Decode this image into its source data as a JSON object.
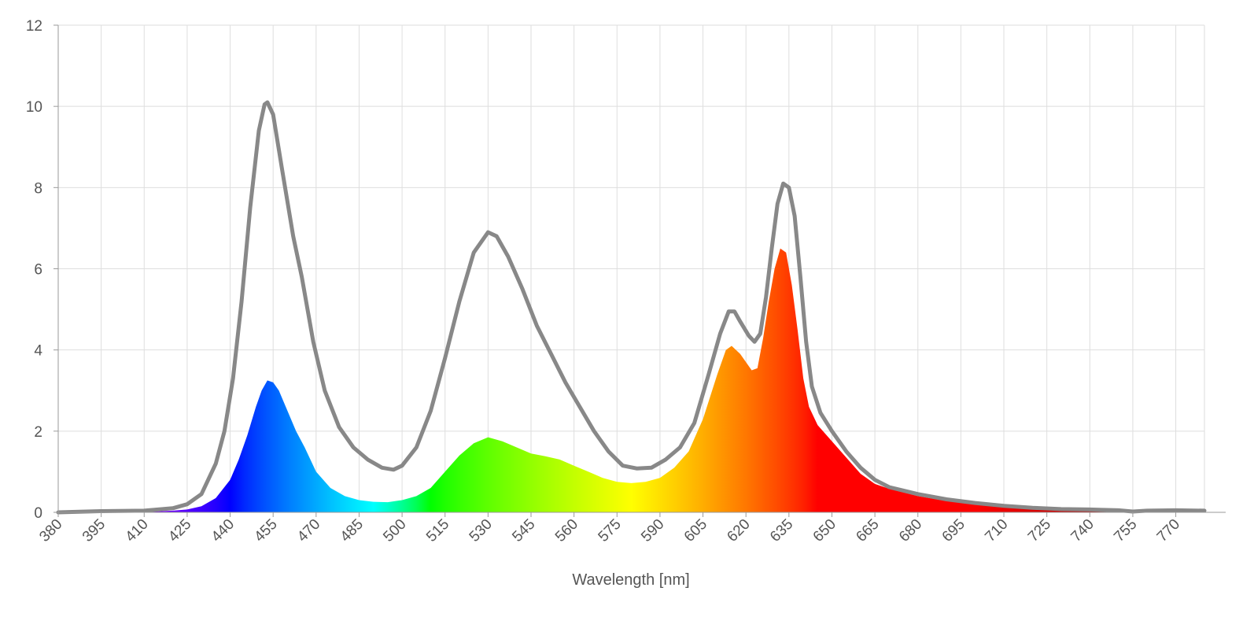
{
  "chart_data": {
    "type": "area",
    "title": "",
    "xlabel": "Wavelength [nm]",
    "ylabel": "",
    "xlim": [
      380,
      780
    ],
    "ylim": [
      0,
      12
    ],
    "grid": true,
    "legend": "none",
    "x_ticks": [
      380,
      395,
      410,
      425,
      440,
      455,
      470,
      485,
      500,
      515,
      530,
      545,
      560,
      575,
      590,
      605,
      620,
      635,
      650,
      665,
      680,
      695,
      710,
      725,
      740,
      755,
      770
    ],
    "y_ticks": [
      0,
      2,
      4,
      6,
      8,
      10,
      12
    ],
    "series": [
      {
        "style": "spectrum-filled-area",
        "points": [
          [
            380,
            0
          ],
          [
            395,
            0.01
          ],
          [
            410,
            0.01
          ],
          [
            420,
            0.04
          ],
          [
            425,
            0.07
          ],
          [
            430,
            0.15
          ],
          [
            435,
            0.35
          ],
          [
            440,
            0.8
          ],
          [
            443,
            1.3
          ],
          [
            446,
            1.9
          ],
          [
            449,
            2.6
          ],
          [
            451,
            3.0
          ],
          [
            453,
            3.25
          ],
          [
            455,
            3.2
          ],
          [
            457,
            3.0
          ],
          [
            460,
            2.5
          ],
          [
            463,
            2.0
          ],
          [
            466,
            1.6
          ],
          [
            470,
            1.0
          ],
          [
            475,
            0.6
          ],
          [
            480,
            0.4
          ],
          [
            485,
            0.3
          ],
          [
            490,
            0.26
          ],
          [
            495,
            0.25
          ],
          [
            500,
            0.3
          ],
          [
            505,
            0.4
          ],
          [
            510,
            0.6
          ],
          [
            515,
            1.0
          ],
          [
            520,
            1.4
          ],
          [
            525,
            1.7
          ],
          [
            530,
            1.85
          ],
          [
            535,
            1.75
          ],
          [
            540,
            1.6
          ],
          [
            545,
            1.45
          ],
          [
            550,
            1.38
          ],
          [
            555,
            1.3
          ],
          [
            560,
            1.15
          ],
          [
            565,
            1.0
          ],
          [
            570,
            0.85
          ],
          [
            575,
            0.75
          ],
          [
            580,
            0.72
          ],
          [
            585,
            0.75
          ],
          [
            590,
            0.85
          ],
          [
            595,
            1.1
          ],
          [
            600,
            1.5
          ],
          [
            605,
            2.3
          ],
          [
            610,
            3.4
          ],
          [
            613,
            4.0
          ],
          [
            615,
            4.1
          ],
          [
            618,
            3.9
          ],
          [
            620,
            3.7
          ],
          [
            622,
            3.5
          ],
          [
            624,
            3.55
          ],
          [
            626,
            4.3
          ],
          [
            628,
            5.2
          ],
          [
            630,
            6.0
          ],
          [
            632,
            6.5
          ],
          [
            634,
            6.4
          ],
          [
            636,
            5.6
          ],
          [
            638,
            4.5
          ],
          [
            640,
            3.3
          ],
          [
            642,
            2.6
          ],
          [
            645,
            2.15
          ],
          [
            650,
            1.75
          ],
          [
            655,
            1.35
          ],
          [
            660,
            0.95
          ],
          [
            665,
            0.7
          ],
          [
            670,
            0.58
          ],
          [
            680,
            0.4
          ],
          [
            690,
            0.28
          ],
          [
            700,
            0.2
          ],
          [
            710,
            0.14
          ],
          [
            720,
            0.1
          ],
          [
            730,
            0.07
          ],
          [
            740,
            0.06
          ],
          [
            750,
            0.05
          ],
          [
            760,
            0.04
          ],
          [
            770,
            0.03
          ],
          [
            780,
            0.02
          ]
        ]
      },
      {
        "style": "gray-line",
        "color": "#888888",
        "points": [
          [
            380,
            0
          ],
          [
            395,
            0.03
          ],
          [
            410,
            0.04
          ],
          [
            420,
            0.1
          ],
          [
            425,
            0.2
          ],
          [
            430,
            0.45
          ],
          [
            435,
            1.2
          ],
          [
            438,
            2.0
          ],
          [
            441,
            3.3
          ],
          [
            444,
            5.2
          ],
          [
            447,
            7.5
          ],
          [
            450,
            9.4
          ],
          [
            452,
            10.05
          ],
          [
            453,
            10.1
          ],
          [
            455,
            9.8
          ],
          [
            458,
            8.5
          ],
          [
            462,
            6.8
          ],
          [
            465,
            5.8
          ],
          [
            469,
            4.2
          ],
          [
            473,
            3.0
          ],
          [
            478,
            2.1
          ],
          [
            483,
            1.6
          ],
          [
            488,
            1.3
          ],
          [
            493,
            1.1
          ],
          [
            497,
            1.05
          ],
          [
            500,
            1.15
          ],
          [
            505,
            1.6
          ],
          [
            510,
            2.5
          ],
          [
            515,
            3.8
          ],
          [
            520,
            5.2
          ],
          [
            525,
            6.4
          ],
          [
            530,
            6.9
          ],
          [
            533,
            6.8
          ],
          [
            537,
            6.3
          ],
          [
            542,
            5.5
          ],
          [
            547,
            4.6
          ],
          [
            552,
            3.9
          ],
          [
            557,
            3.2
          ],
          [
            562,
            2.6
          ],
          [
            567,
            2.0
          ],
          [
            572,
            1.5
          ],
          [
            577,
            1.15
          ],
          [
            582,
            1.08
          ],
          [
            587,
            1.1
          ],
          [
            592,
            1.3
          ],
          [
            597,
            1.6
          ],
          [
            602,
            2.2
          ],
          [
            607,
            3.4
          ],
          [
            611,
            4.4
          ],
          [
            614,
            4.95
          ],
          [
            616,
            4.95
          ],
          [
            618,
            4.7
          ],
          [
            621,
            4.35
          ],
          [
            623,
            4.2
          ],
          [
            625,
            4.4
          ],
          [
            627,
            5.3
          ],
          [
            629,
            6.5
          ],
          [
            631,
            7.6
          ],
          [
            633,
            8.1
          ],
          [
            635,
            8.0
          ],
          [
            637,
            7.3
          ],
          [
            639,
            5.8
          ],
          [
            641,
            4.2
          ],
          [
            643,
            3.1
          ],
          [
            646,
            2.45
          ],
          [
            650,
            2.0
          ],
          [
            655,
            1.5
          ],
          [
            660,
            1.1
          ],
          [
            665,
            0.8
          ],
          [
            670,
            0.62
          ],
          [
            680,
            0.45
          ],
          [
            690,
            0.32
          ],
          [
            700,
            0.23
          ],
          [
            710,
            0.16
          ],
          [
            720,
            0.11
          ],
          [
            730,
            0.08
          ],
          [
            740,
            0.07
          ],
          [
            750,
            0.05
          ],
          [
            755,
            0.02
          ],
          [
            760,
            0.04
          ],
          [
            770,
            0.05
          ],
          [
            780,
            0.04
          ]
        ]
      }
    ]
  }
}
